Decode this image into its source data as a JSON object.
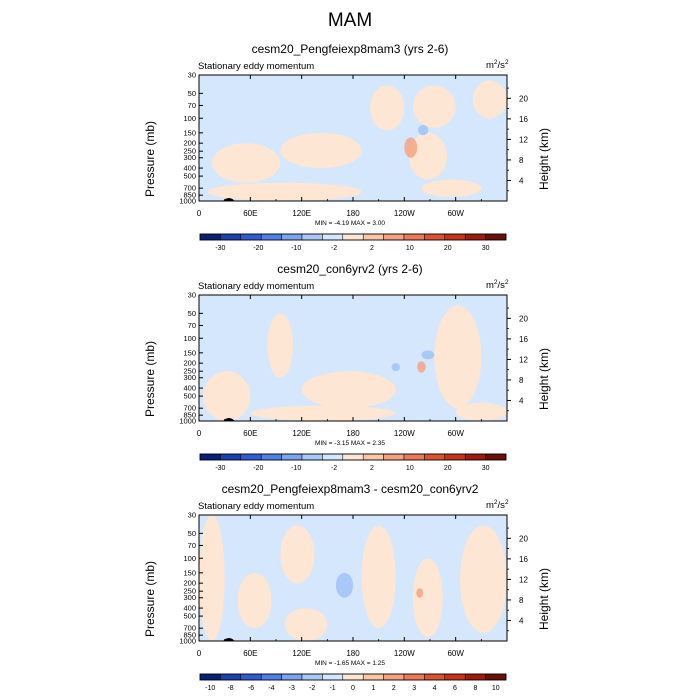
{
  "title": "MAM",
  "chart_data": [
    {
      "type": "heatmap",
      "title": "cesm20_Pengfeiexp8mam3 (yrs 2-6)",
      "subtitle": "Stationary eddy momentum",
      "units": "m2/s2",
      "units_base": "m",
      "units_exp1": "2",
      "units_mid": "/s",
      "units_exp2": "2",
      "ylabel": "Pressure (mb)",
      "y2label": "Height (km)",
      "x_ticks": [
        "0",
        "60E",
        "120E",
        "180",
        "120W",
        "60W"
      ],
      "x_tick_lon": [
        0,
        60,
        120,
        180,
        240,
        300
      ],
      "xlim": [
        0,
        360
      ],
      "y_ticks": [
        "30",
        "50",
        "70",
        "100",
        "150",
        "200",
        "250",
        "300",
        "400",
        "500",
        "700",
        "850",
        "1000"
      ],
      "y_tick_p": [
        30,
        50,
        70,
        100,
        150,
        200,
        250,
        300,
        400,
        500,
        700,
        850,
        1000
      ],
      "ylim": [
        1000,
        30
      ],
      "y2_ticks": [
        "20",
        "16",
        "12",
        "8",
        "4"
      ],
      "y2_tick_km": [
        20,
        16,
        12,
        8,
        4
      ],
      "minmax_text": "MIN = -4.19   MAX =   3.00",
      "min": -4.19,
      "max": 3.0,
      "colorbar_labels": [
        "-30",
        "-20",
        "-10",
        "-2",
        "2",
        "10",
        "20",
        "30"
      ],
      "colorbar_colors": [
        "#08207a",
        "#1c40b0",
        "#2f5dd1",
        "#4f80e6",
        "#7aa4f0",
        "#a8c8f7",
        "#d4e7fc",
        "#fde6d3",
        "#fbc6a6",
        "#f5a07e",
        "#ec7a57",
        "#dd5330",
        "#c4331a",
        "#9d1d0d",
        "#6b0f08"
      ],
      "background_color": "#d4e7fc",
      "features": [
        {
          "kind": "positive",
          "lon": [
            15,
            95
          ],
          "p": [
            200,
            600
          ]
        },
        {
          "kind": "positive",
          "lon": [
            95,
            190
          ],
          "p": [
            150,
            400
          ]
        },
        {
          "kind": "positive",
          "lon": [
            10,
            190
          ],
          "p": [
            600,
            1000
          ]
        },
        {
          "kind": "positive",
          "lon": [
            200,
            240
          ],
          "p": [
            40,
            140
          ]
        },
        {
          "kind": "positive",
          "lon": [
            250,
            300
          ],
          "p": [
            40,
            130
          ]
        },
        {
          "kind": "positive",
          "lon": [
            245,
            290
          ],
          "p": [
            150,
            550
          ]
        },
        {
          "kind": "positive",
          "lon": [
            320,
            360
          ],
          "p": [
            35,
            100
          ]
        },
        {
          "kind": "positive",
          "lon": [
            260,
            330
          ],
          "p": [
            550,
            900
          ]
        },
        {
          "kind": "positive_strong",
          "lon": [
            240,
            255
          ],
          "p": [
            170,
            300
          ]
        },
        {
          "kind": "negative",
          "lon": [
            256,
            268
          ],
          "p": [
            120,
            160
          ]
        }
      ]
    },
    {
      "type": "heatmap",
      "title": "cesm20_con6yrv2 (yrs 2-6)",
      "subtitle": "Stationary eddy momentum",
      "units": "m2/s2",
      "units_base": "m",
      "units_exp1": "2",
      "units_mid": "/s",
      "units_exp2": "2",
      "ylabel": "Pressure (mb)",
      "y2label": "Height (km)",
      "x_ticks": [
        "0",
        "60E",
        "120E",
        "180",
        "120W",
        "60W"
      ],
      "x_tick_lon": [
        0,
        60,
        120,
        180,
        240,
        300
      ],
      "xlim": [
        0,
        360
      ],
      "y_ticks": [
        "30",
        "50",
        "70",
        "100",
        "150",
        "200",
        "250",
        "300",
        "400",
        "500",
        "700",
        "850",
        "1000"
      ],
      "y_tick_p": [
        30,
        50,
        70,
        100,
        150,
        200,
        250,
        300,
        400,
        500,
        700,
        850,
        1000
      ],
      "ylim": [
        1000,
        30
      ],
      "y2_ticks": [
        "20",
        "16",
        "12",
        "8",
        "4"
      ],
      "y2_tick_km": [
        20,
        16,
        12,
        8,
        4
      ],
      "minmax_text": "MIN = -3.15   MAX =   2.35",
      "min": -3.15,
      "max": 2.35,
      "colorbar_labels": [
        "-30",
        "-20",
        "-10",
        "-2",
        "2",
        "10",
        "20",
        "30"
      ],
      "colorbar_colors": [
        "#08207a",
        "#1c40b0",
        "#2f5dd1",
        "#4f80e6",
        "#7aa4f0",
        "#a8c8f7",
        "#d4e7fc",
        "#fde6d3",
        "#fbc6a6",
        "#f5a07e",
        "#ec7a57",
        "#dd5330",
        "#c4331a",
        "#9d1d0d",
        "#6b0f08"
      ],
      "background_color": "#d4e7fc",
      "features": [
        {
          "kind": "positive",
          "lon": [
            5,
            60
          ],
          "p": [
            250,
            1000
          ]
        },
        {
          "kind": "positive",
          "lon": [
            80,
            110
          ],
          "p": [
            50,
            300
          ]
        },
        {
          "kind": "positive",
          "lon": [
            120,
            230
          ],
          "p": [
            250,
            700
          ]
        },
        {
          "kind": "positive",
          "lon": [
            60,
            230
          ],
          "p": [
            650,
            1000
          ]
        },
        {
          "kind": "positive",
          "lon": [
            275,
            330
          ],
          "p": [
            40,
            700
          ]
        },
        {
          "kind": "positive",
          "lon": [
            300,
            360
          ],
          "p": [
            600,
            1000
          ]
        },
        {
          "kind": "positive_strong",
          "lon": [
            255,
            265
          ],
          "p": [
            190,
            260
          ]
        },
        {
          "kind": "negative",
          "lon": [
            225,
            235
          ],
          "p": [
            200,
            250
          ]
        },
        {
          "kind": "negative",
          "lon": [
            260,
            275
          ],
          "p": [
            140,
            180
          ]
        }
      ]
    },
    {
      "type": "heatmap",
      "title": "cesm20_Pengfeiexp8mam3 - cesm20_con6yrv2",
      "subtitle": "Stationary eddy momentum",
      "units": "m2/s2",
      "units_base": "m",
      "units_exp1": "2",
      "units_mid": "/s",
      "units_exp2": "2",
      "ylabel": "Pressure (mb)",
      "y2label": "Height (km)",
      "x_ticks": [
        "0",
        "60E",
        "120E",
        "180",
        "120W",
        "60W"
      ],
      "x_tick_lon": [
        0,
        60,
        120,
        180,
        240,
        300
      ],
      "xlim": [
        0,
        360
      ],
      "y_ticks": [
        "30",
        "50",
        "70",
        "100",
        "150",
        "200",
        "250",
        "300",
        "400",
        "500",
        "700",
        "850",
        "1000"
      ],
      "y_tick_p": [
        30,
        50,
        70,
        100,
        150,
        200,
        250,
        300,
        400,
        500,
        700,
        850,
        1000
      ],
      "ylim": [
        1000,
        30
      ],
      "y2_ticks": [
        "20",
        "16",
        "12",
        "8",
        "4"
      ],
      "y2_tick_km": [
        20,
        16,
        12,
        8,
        4
      ],
      "minmax_text": "MIN = -1.65   MAX =   1.25",
      "min": -1.65,
      "max": 1.25,
      "colorbar_labels": [
        "-10",
        "-8",
        "-6",
        "-4",
        "-3",
        "-2",
        "-1",
        "0",
        "1",
        "2",
        "3",
        "4",
        "6",
        "8",
        "10"
      ],
      "colorbar_colors": [
        "#08207a",
        "#1c40b0",
        "#2f5dd1",
        "#4f80e6",
        "#7aa4f0",
        "#a8c8f7",
        "#d4e7fc",
        "#fde6d3",
        "#fbc6a6",
        "#f5a07e",
        "#ec7a57",
        "#dd5330",
        "#c4331a",
        "#9d1d0d",
        "#6b0f08"
      ],
      "background_color": "#d4e7fc",
      "features": [
        {
          "kind": "positive",
          "lon": [
            0,
            30
          ],
          "p": [
            30,
            1000
          ]
        },
        {
          "kind": "positive",
          "lon": [
            45,
            85
          ],
          "p": [
            150,
            700
          ]
        },
        {
          "kind": "positive",
          "lon": [
            95,
            135
          ],
          "p": [
            40,
            200
          ]
        },
        {
          "kind": "positive",
          "lon": [
            100,
            150
          ],
          "p": [
            400,
            1000
          ]
        },
        {
          "kind": "positive",
          "lon": [
            190,
            230
          ],
          "p": [
            40,
            700
          ]
        },
        {
          "kind": "positive",
          "lon": [
            250,
            285
          ],
          "p": [
            100,
            900
          ]
        },
        {
          "kind": "positive",
          "lon": [
            305,
            360
          ],
          "p": [
            40,
            800
          ]
        },
        {
          "kind": "positive_strong",
          "lon": [
            254,
            262
          ],
          "p": [
            230,
            300
          ]
        },
        {
          "kind": "negative",
          "lon": [
            160,
            180
          ],
          "p": [
            150,
            300
          ]
        }
      ]
    }
  ]
}
